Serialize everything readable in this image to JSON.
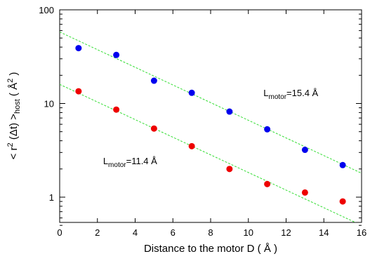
{
  "chart_data": {
    "type": "scatter",
    "xlabel": "Distance to the motor   D  ( Å )",
    "ylabel": {
      "prefix": "< r",
      "sup": "2",
      "middle": " (Δt) >",
      "sub": "host",
      "unit_open": "   ( Å",
      "unit_sup": "2",
      "unit_close": " )"
    },
    "xlim": [
      0,
      16
    ],
    "ylim": [
      0.5,
      100
    ],
    "yscale": "log",
    "grid": false,
    "x_ticks": [
      0,
      2,
      4,
      6,
      8,
      10,
      12,
      14,
      16
    ],
    "x_tick_labels": [
      "0",
      "2",
      "4",
      "6",
      "8",
      "10",
      "12",
      "14",
      "16"
    ],
    "y_ticks": [
      1,
      10,
      100
    ],
    "y_tick_labels": [
      "1",
      "10",
      "100"
    ],
    "series": [
      {
        "color": "#0000ee",
        "x": [
          1,
          3,
          5,
          7,
          9,
          11,
          13,
          15
        ],
        "y": [
          39,
          33,
          17.5,
          13,
          8.2,
          5.3,
          3.2,
          2.2
        ],
        "fit": {
          "x": [
            0,
            16
          ],
          "y": [
            58,
            1.8
          ],
          "color": "#33dd33",
          "style": "dashed"
        }
      },
      {
        "color": "#ee0000",
        "x": [
          1,
          3,
          5,
          7,
          9,
          11,
          13,
          15
        ],
        "y": [
          13.5,
          8.6,
          5.4,
          3.5,
          2.0,
          1.38,
          1.12,
          0.9
        ],
        "fit": {
          "x": [
            0,
            16
          ],
          "y": [
            16,
            0.5
          ],
          "color": "#33dd33",
          "style": "dashed"
        }
      }
    ],
    "annotations": [
      {
        "base": "L",
        "sub": "motor",
        "rest": "=15.4 Å",
        "x": 10.8,
        "y": 12.0
      },
      {
        "base": "L",
        "sub": "motor",
        "rest": "=11.4 Å",
        "x": 2.3,
        "y": 2.25
      }
    ]
  }
}
